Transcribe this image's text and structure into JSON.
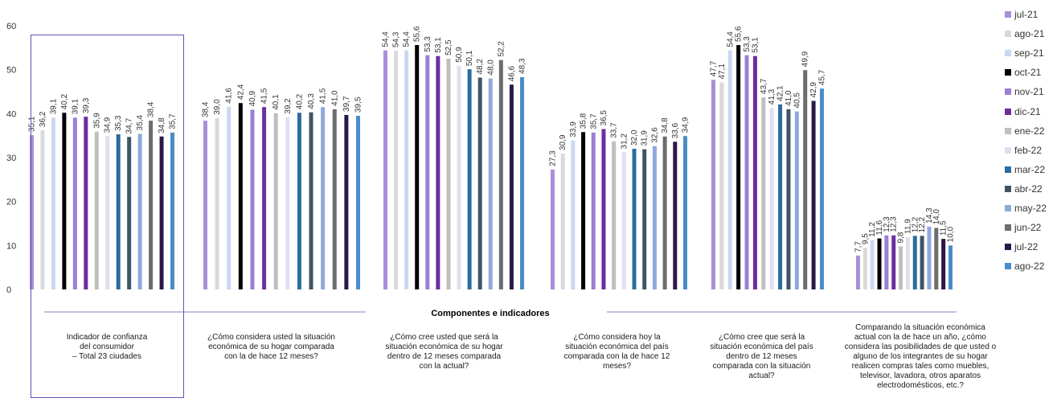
{
  "chart_data": {
    "type": "bar",
    "xlabel": "Componentes e indicadores",
    "ylabel": "",
    "ylim": [
      0,
      60
    ],
    "yticks": [
      "0",
      "10",
      "20",
      "30",
      "40",
      "50",
      "60"
    ],
    "grid": false,
    "legend_position": "right",
    "highlighted_category": 0,
    "categories": [
      "Indicador de confianza\ndel consumidor\n– Total 23 ciudades",
      "¿Cómo considera usted la situación\neconómica de su hogar comparada\ncon la de hace 12 meses?",
      "¿Cómo cree usted que será la\nsituación económica de su hogar\ndentro de 12 meses comparada\ncon la actual?",
      "¿Cómo considera hoy la\nsituación económica del país\ncomparada con la de hace 12\nmeses?",
      "¿Cómo cree que será la\nsituación económica del país\ndentro de 12 meses\ncomparada con la situación\nactual?",
      "Comparando la situación económica\nactual con la de hace un año, ¿cómo\nconsidera las posibilidades de que usted o\nalguno de los integrantes de su hogar\nrealicen compras tales como muebles,\ntelevisor, lavadora, otros aparatos\nelectrodomésticos, etc.?"
    ],
    "series": [
      {
        "name": "jul-21",
        "color": "#a98fd8",
        "values": [
          "35,1",
          "38,4",
          "54,4",
          "27,3",
          "47,7",
          "7,7"
        ]
      },
      {
        "name": "ago-21",
        "color": "#d9d9d9",
        "values": [
          "36,2",
          "39,0",
          "54,3",
          "30,9",
          "47,1",
          "9,5"
        ]
      },
      {
        "name": "sep-21",
        "color": "#c9d8f2",
        "values": [
          "39,1",
          "41,6",
          "54,4",
          "33,9",
          "54,4",
          "11,2"
        ]
      },
      {
        "name": "oct-21",
        "color": "#000000",
        "values": [
          "40,2",
          "42,4",
          "55,6",
          "35,8",
          "55,6",
          "11,6"
        ]
      },
      {
        "name": "nov-21",
        "color": "#9b7fd4",
        "values": [
          "39,1",
          "40,9",
          "53,3",
          "35,7",
          "53,3",
          "12,3"
        ]
      },
      {
        "name": "dic-21",
        "color": "#6b2fa0",
        "values": [
          "39,3",
          "41,5",
          "53,1",
          "36,5",
          "53,1",
          "12,3"
        ]
      },
      {
        "name": "ene-22",
        "color": "#bfbfbf",
        "values": [
          "35,9",
          "40,1",
          "52,5",
          "33,7",
          "43,7",
          "9,8"
        ]
      },
      {
        "name": "feb-22",
        "color": "#e3ddf3",
        "values": [
          "34,9",
          "39,2",
          "50,9",
          "31,2",
          "41,3",
          "11,9"
        ]
      },
      {
        "name": "mar-22",
        "color": "#2e6b9e",
        "values": [
          "35,3",
          "40,2",
          "50,1",
          "32,0",
          "42,1",
          "12,2"
        ]
      },
      {
        "name": "abr-22",
        "color": "#3f5468",
        "values": [
          "34,7",
          "40,3",
          "48,2",
          "31,9",
          "41,0",
          "12,2"
        ]
      },
      {
        "name": "may-22",
        "color": "#8fa8dc",
        "values": [
          "35,4",
          "41,5",
          "48,0",
          "32,6",
          "40,5",
          "14,3"
        ]
      },
      {
        "name": "jun-22",
        "color": "#6d6d6d",
        "values": [
          "38,4",
          "41,0",
          "52,2",
          "34,8",
          "49,9",
          "14,0"
        ]
      },
      {
        "name": "jul-22",
        "color": "#2b1747",
        "values": [
          "34,8",
          "39,7",
          "46,6",
          "33,6",
          "42,9",
          "11,5"
        ]
      },
      {
        "name": "ago-22",
        "color": "#4a8cc8",
        "values": [
          "35,7",
          "39,5",
          "48,3",
          "34,9",
          "45,7",
          "10,0"
        ]
      }
    ]
  }
}
